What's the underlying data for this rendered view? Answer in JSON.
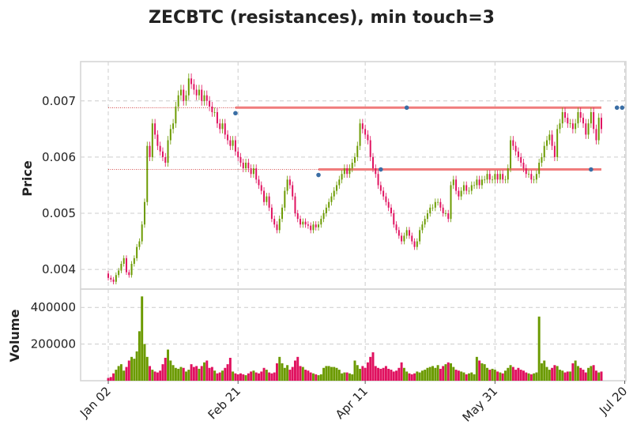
{
  "chart_data": {
    "type": "candlestick",
    "title": "ZECBTC (resistances), min touch=3",
    "price_panel": {
      "ylabel": "Price",
      "ylim": [
        0.00365,
        0.0077
      ],
      "yticks": [
        0.004,
        0.005,
        0.006,
        0.007
      ],
      "ytick_labels": [
        "0.004",
        "0.005",
        "0.006",
        "0.007"
      ]
    },
    "volume_panel": {
      "ylabel": "Volume",
      "ylim": [
        0,
        500000
      ],
      "yticks": [
        200000,
        400000
      ],
      "ytick_labels": [
        "200000",
        "400000"
      ]
    },
    "x_axis": {
      "tick_labels": [
        "Jan 02",
        "Feb 21",
        "Apr 11",
        "May 31",
        "Jul 20"
      ],
      "tick_days": [
        0,
        50,
        99,
        149,
        199
      ]
    },
    "grid": true,
    "colors": {
      "up": "#6b9a00",
      "down": "#e0115f",
      "resistance_line": "#f07c7c",
      "guide_line": "#cc2222",
      "touch_marker": "#3a6ea5",
      "grid": "#cccccc",
      "text": "#222222"
    },
    "series": [
      {
        "name": "close",
        "values": [
          0.00385,
          0.00382,
          0.00378,
          0.0039,
          0.00398,
          0.0041,
          0.0042,
          0.00395,
          0.0039,
          0.0041,
          0.0042,
          0.0044,
          0.0045,
          0.0048,
          0.0052,
          0.0062,
          0.006,
          0.0066,
          0.0064,
          0.0062,
          0.0061,
          0.006,
          0.0059,
          0.0063,
          0.0065,
          0.0066,
          0.0069,
          0.0071,
          0.0072,
          0.007,
          0.0071,
          0.0074,
          0.0073,
          0.0072,
          0.0071,
          0.0072,
          0.007,
          0.0071,
          0.007,
          0.0069,
          0.0068,
          0.0068,
          0.0066,
          0.0065,
          0.0066,
          0.0064,
          0.0063,
          0.0062,
          0.0063,
          0.0061,
          0.006,
          0.0059,
          0.0058,
          0.0059,
          0.0058,
          0.0057,
          0.0058,
          0.0056,
          0.0055,
          0.0054,
          0.0052,
          0.0053,
          0.0051,
          0.0049,
          0.0048,
          0.0047,
          0.0049,
          0.0051,
          0.0054,
          0.0056,
          0.0055,
          0.0053,
          0.005,
          0.0049,
          0.0048,
          0.00485,
          0.0048,
          0.00478,
          0.0047,
          0.0048,
          0.00475,
          0.0048,
          0.0049,
          0.005,
          0.0051,
          0.0052,
          0.0053,
          0.0054,
          0.0055,
          0.0056,
          0.0057,
          0.0058,
          0.0057,
          0.0058,
          0.0059,
          0.006,
          0.0062,
          0.0066,
          0.0065,
          0.0064,
          0.0063,
          0.006,
          0.0058,
          0.0057,
          0.0055,
          0.0054,
          0.0053,
          0.0052,
          0.0051,
          0.005,
          0.0048,
          0.0047,
          0.0046,
          0.0045,
          0.0046,
          0.0047,
          0.0046,
          0.0045,
          0.0044,
          0.0045,
          0.0047,
          0.0048,
          0.0049,
          0.005,
          0.0051,
          0.0051,
          0.0052,
          0.0052,
          0.0051,
          0.005,
          0.005,
          0.0049,
          0.0055,
          0.0056,
          0.0054,
          0.0053,
          0.0054,
          0.0055,
          0.0054,
          0.0054,
          0.0055,
          0.0055,
          0.0056,
          0.0055,
          0.0056,
          0.0056,
          0.0057,
          0.0056,
          0.0056,
          0.0057,
          0.0056,
          0.0057,
          0.0056,
          0.0056,
          0.0058,
          0.0063,
          0.0062,
          0.0061,
          0.006,
          0.0059,
          0.0058,
          0.0057,
          0.0057,
          0.0056,
          0.0056,
          0.0057,
          0.0059,
          0.006,
          0.0062,
          0.0063,
          0.0064,
          0.0062,
          0.006,
          0.0065,
          0.0066,
          0.0068,
          0.0067,
          0.0066,
          0.0066,
          0.0065,
          0.0066,
          0.0068,
          0.0067,
          0.0066,
          0.0064,
          0.0066,
          0.0068,
          0.0065,
          0.0063,
          0.0067,
          0.0065
        ]
      },
      {
        "name": "volume",
        "values": [
          15000,
          20000,
          40000,
          60000,
          80000,
          90000,
          55000,
          75000,
          110000,
          130000,
          120000,
          160000,
          270000,
          460000,
          200000,
          130000,
          80000,
          60000,
          50000,
          45000,
          55000,
          90000,
          125000,
          170000,
          110000,
          85000,
          70000,
          65000,
          75000,
          70000,
          50000,
          60000,
          90000,
          75000,
          80000,
          65000,
          80000,
          100000,
          110000,
          70000,
          75000,
          55000,
          40000,
          45000,
          55000,
          70000,
          90000,
          125000,
          50000,
          40000,
          35000,
          40000,
          35000,
          30000,
          40000,
          50000,
          55000,
          45000,
          40000,
          50000,
          70000,
          60000,
          45000,
          40000,
          45000,
          95000,
          130000,
          95000,
          70000,
          85000,
          60000,
          75000,
          110000,
          130000,
          80000,
          75000,
          60000,
          55000,
          45000,
          40000,
          35000,
          30000,
          35000,
          70000,
          80000,
          80000,
          75000,
          75000,
          70000,
          60000,
          40000,
          45000,
          45000,
          40000,
          35000,
          110000,
          85000,
          65000,
          80000,
          70000,
          100000,
          130000,
          155000,
          80000,
          70000,
          65000,
          70000,
          80000,
          65000,
          60000,
          50000,
          55000,
          70000,
          100000,
          70000,
          50000,
          40000,
          35000,
          40000,
          50000,
          45000,
          55000,
          60000,
          70000,
          75000,
          80000,
          70000,
          85000,
          65000,
          80000,
          90000,
          100000,
          95000,
          75000,
          60000,
          55000,
          50000,
          45000,
          35000,
          40000,
          45000,
          35000,
          130000,
          110000,
          95000,
          90000,
          70000,
          60000,
          65000,
          60000,
          50000,
          45000,
          40000,
          55000,
          70000,
          85000,
          75000,
          60000,
          70000,
          60000,
          55000,
          45000,
          40000,
          35000,
          40000,
          45000,
          350000,
          95000,
          110000,
          75000,
          60000,
          70000,
          85000,
          80000,
          60000,
          55000,
          45000,
          50000,
          50000,
          95000,
          110000,
          80000,
          70000,
          60000,
          45000,
          70000,
          80000,
          85000,
          55000,
          45000,
          50000,
          50000,
          65000,
          120000,
          60000,
          55000,
          45000,
          40000,
          40000,
          45000
        ]
      }
    ],
    "resistances": [
      {
        "level": 0.00688,
        "start_day": 49,
        "touches_days": [
          49,
          115,
          196,
          198,
          204
        ]
      },
      {
        "level": 0.00578,
        "start_day": 81,
        "touches_days": [
          81,
          105,
          186
        ]
      }
    ]
  }
}
